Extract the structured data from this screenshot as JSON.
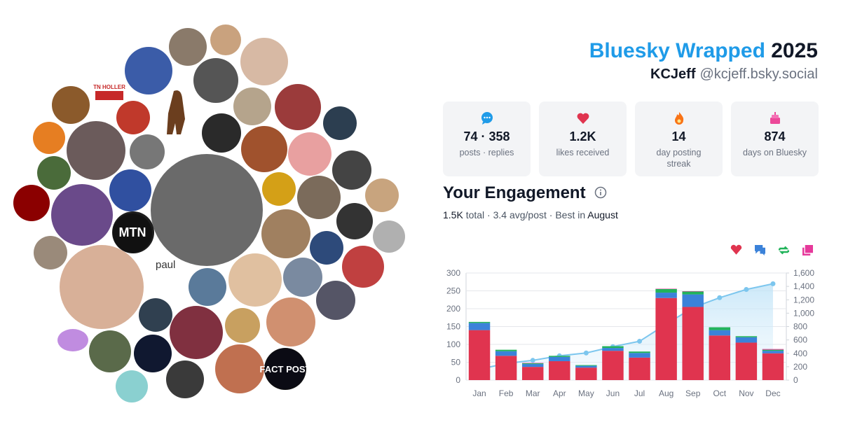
{
  "header": {
    "title": "Bluesky Wrapped",
    "year": "2025",
    "display_name": "KCJeff",
    "handle": "@kcjeff.bsky.social"
  },
  "stats": [
    {
      "value": "74 · 358",
      "label": "posts · replies"
    },
    {
      "value": "1.2K",
      "label": "likes received"
    },
    {
      "value": "14",
      "label": "day posting streak"
    },
    {
      "value": "874",
      "label": "days on Bluesky"
    }
  ],
  "engagement": {
    "title": "Your Engagement",
    "total": "1.5K",
    "summary": "total · 3.4 avg/post · Best in",
    "best_month": "August"
  },
  "avatar_labels": [
    "TN HOLLER",
    "MTN",
    "FACT POST",
    "paul"
  ],
  "chart_data": {
    "type": "bar",
    "stacked": true,
    "categories": [
      "Jan",
      "Feb",
      "Mar",
      "Apr",
      "May",
      "Jun",
      "Jul",
      "Aug",
      "Sep",
      "Oct",
      "Nov",
      "Dec"
    ],
    "series": [
      {
        "color": "#e0344f",
        "values": [
          140,
          68,
          37,
          53,
          35,
          82,
          63,
          230,
          205,
          125,
          105,
          75
        ]
      },
      {
        "color": "#3b82d9",
        "values": [
          20,
          13,
          8,
          12,
          5,
          8,
          13,
          15,
          35,
          15,
          15,
          7
        ]
      },
      {
        "color": "#22b35b",
        "values": [
          3,
          4,
          2,
          3,
          2,
          5,
          4,
          10,
          8,
          8,
          3,
          3
        ]
      },
      {
        "color": "#e6399b",
        "values": [
          0,
          0,
          1,
          0,
          0,
          0,
          0,
          1,
          1,
          0,
          0,
          2
        ]
      },
      {
        "type": "line",
        "axis": "y2",
        "color": "#7cc6ee",
        "values": [
          163,
          248,
          295,
          363,
          405,
          500,
          580,
          835,
          1083,
          1231,
          1354,
          1439
        ]
      }
    ],
    "ylim": [
      0,
      300
    ],
    "yticks": [
      0,
      50,
      100,
      150,
      200,
      250,
      300
    ],
    "y2lim": [
      0,
      1600
    ],
    "y2ticks": [
      0,
      200,
      400,
      600,
      800,
      {
        "value": 1000,
        "label": "1,000"
      },
      {
        "value": 1200,
        "label": "1,200"
      },
      {
        "value": 1400,
        "label": "1,400"
      },
      {
        "value": 1600,
        "label": "1,600"
      }
    ],
    "grid": true
  }
}
